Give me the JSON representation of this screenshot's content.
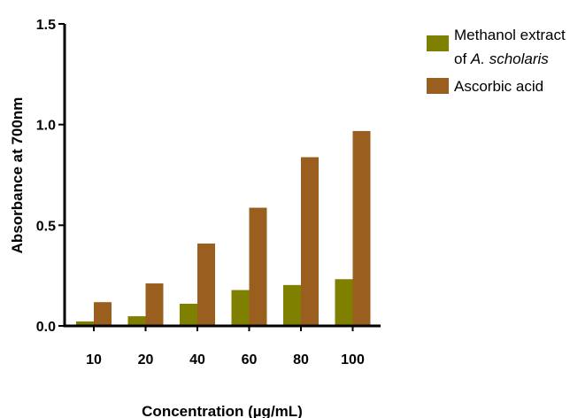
{
  "chart_data": {
    "type": "bar",
    "categories": [
      "10",
      "20",
      "40",
      "60",
      "80",
      "100"
    ],
    "series": [
      {
        "name": "Methanol extract of A. scholaris",
        "color": "#7f7f00",
        "values": [
          0.022,
          0.048,
          0.11,
          0.178,
          0.203,
          0.232
        ]
      },
      {
        "name": "Ascorbic acid",
        "color": "#9a5f1e",
        "values": [
          0.118,
          0.211,
          0.409,
          0.587,
          0.838,
          0.968
        ]
      }
    ],
    "xlabel": "Concentration (µg/mL)",
    "ylabel": "Absorbance at 700nm",
    "ylim": [
      0,
      1.5
    ],
    "yticks": [
      "0.0",
      "0.5",
      "1.0",
      "1.5"
    ],
    "grid": false,
    "legend_position": "top-right",
    "legend": [
      {
        "lines": [
          "Methanol extract",
          "of "
        ],
        "italic": "A. scholaris"
      },
      {
        "lines": [
          "Ascorbic acid"
        ]
      }
    ]
  }
}
